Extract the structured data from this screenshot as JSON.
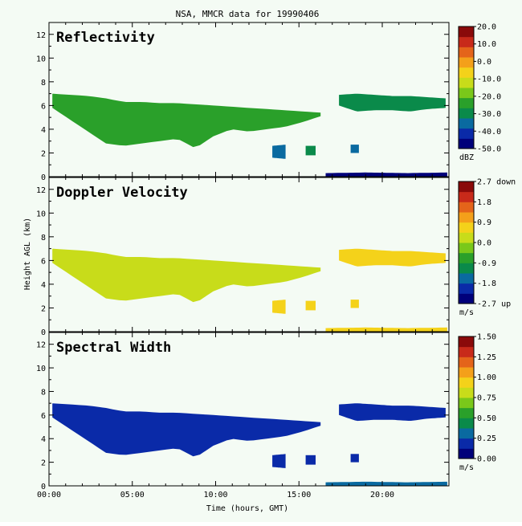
{
  "chart_data": {
    "type": "heatmap",
    "title": "NSA, MMCR data for 19990406",
    "xlabel": "Time (hours, GMT)",
    "ylabel": "Height AGL (km)",
    "xlim": [
      0,
      24
    ],
    "ylim": [
      0,
      13
    ],
    "x_ticks": [
      "00:00",
      "05:00",
      "10:00",
      "15:00",
      "20:00"
    ],
    "x_tick_values": [
      0,
      5,
      10,
      15,
      20
    ],
    "y_ticks": [
      "0",
      "2",
      "4",
      "6",
      "8",
      "10",
      "12"
    ],
    "y_tick_values": [
      0,
      2,
      4,
      6,
      8,
      10,
      12
    ],
    "cloud_layers": [
      {
        "name": "main-layer",
        "start": 0.2,
        "end": 16.3,
        "top": [
          7.0,
          6.9,
          6.8,
          6.6,
          6.3,
          6.3,
          6.2,
          6.2,
          6.1,
          6.0,
          5.9,
          5.8,
          5.7,
          5.6,
          5.5,
          5.4
        ],
        "base": [
          5.8,
          4.8,
          3.8,
          2.8,
          2.6,
          2.8,
          3.0,
          3.2,
          2.4,
          3.4,
          4.0,
          3.8,
          4.0,
          4.2,
          4.6,
          5.1
        ]
      },
      {
        "name": "upper-layer",
        "start": 17.4,
        "end": 23.8,
        "top": [
          6.9,
          7.0,
          6.9,
          6.8,
          6.8,
          6.7,
          6.6
        ],
        "base": [
          6.0,
          5.5,
          5.6,
          5.6,
          5.5,
          5.7,
          5.8
        ]
      },
      {
        "name": "cell-1",
        "start": 13.4,
        "end": 14.2,
        "top": [
          2.6,
          2.7
        ],
        "base": [
          1.6,
          1.5
        ]
      },
      {
        "name": "cell-2",
        "start": 15.4,
        "end": 16.0,
        "top": [
          2.6,
          2.6
        ],
        "base": [
          1.8,
          1.8
        ]
      },
      {
        "name": "cell-3",
        "start": 18.1,
        "end": 18.6,
        "top": [
          2.7,
          2.7
        ],
        "base": [
          2.0,
          2.0
        ]
      },
      {
        "name": "near-surface",
        "start": 16.6,
        "end": 23.9,
        "top": [
          0.3,
          0.35,
          0.3,
          0.35
        ],
        "base": [
          0.0,
          0.0,
          0.0,
          0.0
        ]
      }
    ],
    "panels": [
      {
        "title": "Reflectivity",
        "unit": "dBZ",
        "colorbar_labels": [
          "20.0",
          "10.0",
          "0.0",
          "-10.0",
          "-20.0",
          "-30.0",
          "-40.0",
          "-50.0"
        ],
        "colorbar_values": [
          20,
          10,
          0,
          -10,
          -20,
          -30,
          -40,
          -50
        ],
        "range": [
          -50,
          20
        ],
        "colors": [
          "#00007a",
          "#0a2aa8",
          "#0a6aa0",
          "#0a8a4a",
          "#2aa02a",
          "#7ac81a",
          "#c8dc1a",
          "#f4d21a",
          "#f4a01a",
          "#e4641a",
          "#c82a1a",
          "#8a0a0a"
        ],
        "layer_values": [
          -25,
          -30,
          -35,
          -32,
          -35,
          -45
        ]
      },
      {
        "title": "Doppler Velocity",
        "unit": "m/s",
        "colorbar_labels": [
          "2.7 down",
          "1.8",
          "0.9",
          "0.0",
          "-0.9",
          "-1.8",
          "-2.7 up"
        ],
        "colorbar_values": [
          2.7,
          1.8,
          0.9,
          0.0,
          -0.9,
          -1.8,
          -2.7
        ],
        "range": [
          -2.7,
          2.7
        ],
        "colors": [
          "#00007a",
          "#0a2aa8",
          "#0a6aa0",
          "#0a8a4a",
          "#2aa02a",
          "#7ac81a",
          "#c8dc1a",
          "#f4d21a",
          "#f4a01a",
          "#e4641a",
          "#c82a1a",
          "#8a0a0a"
        ],
        "layer_values": [
          0.4,
          0.5,
          0.6,
          0.6,
          0.5,
          0.5
        ]
      },
      {
        "title": "Spectral Width",
        "unit": "m/s",
        "colorbar_labels": [
          "1.50",
          "1.25",
          "1.00",
          "0.75",
          "0.50",
          "0.25",
          "0.00"
        ],
        "colorbar_values": [
          1.5,
          1.25,
          1.0,
          0.75,
          0.5,
          0.25,
          0.0
        ],
        "range": [
          0,
          1.5
        ],
        "colors": [
          "#00007a",
          "#0a2aa8",
          "#0a6aa0",
          "#0a8a4a",
          "#2aa02a",
          "#7ac81a",
          "#c8dc1a",
          "#f4d21a",
          "#f4a01a",
          "#e4641a",
          "#c82a1a",
          "#8a0a0a"
        ],
        "layer_values": [
          0.22,
          0.15,
          0.2,
          0.2,
          0.2,
          0.3
        ]
      }
    ]
  }
}
